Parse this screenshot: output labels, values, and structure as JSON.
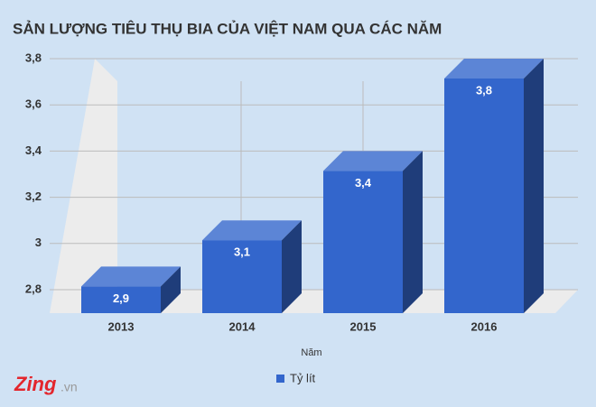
{
  "chart_data": {
    "type": "bar3d",
    "title": "SẢN LƯỢNG TIÊU THỤ BIA CỦA VIỆT NAM QUA CÁC NĂM",
    "x_label": "Năm",
    "categories": [
      "2013",
      "2014",
      "2015",
      "2016"
    ],
    "series": [
      {
        "name": "Tỷ lít",
        "color": "#3366cc",
        "values": [
          2.9,
          3.1,
          3.4,
          3.8
        ],
        "value_labels": [
          "2,9",
          "3,1",
          "3,4",
          "3,8"
        ]
      }
    ],
    "ylim": [
      2.8,
      3.8
    ],
    "yticks": [
      {
        "value": 2.8,
        "label": "2,8"
      },
      3,
      {
        "value": 3.2,
        "label": "3,2"
      },
      {
        "value": 3.4,
        "label": "3,4"
      },
      {
        "value": 3.6,
        "label": "3,6"
      },
      {
        "value": 3.8,
        "label": "3,8"
      }
    ],
    "grid": true
  },
  "watermark": {
    "brand": "Zing",
    "domain": ".vn"
  }
}
